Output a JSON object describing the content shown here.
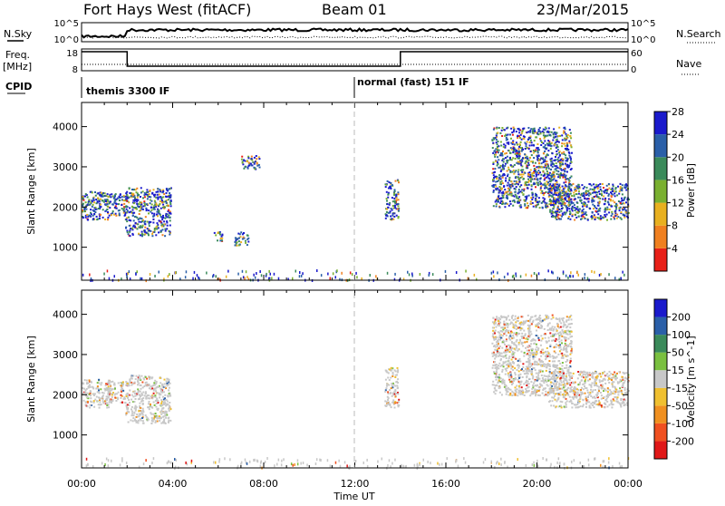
{
  "header": {
    "station": "Fort Hays West (fitACF)",
    "beam": "Beam 01",
    "date": "23/Mar/2015"
  },
  "status_panels": {
    "nsky_label": "N.Sky",
    "nsky_ticks": [
      "10^5",
      "10^0"
    ],
    "nsearch_label": "N.Search",
    "nsearch_ticks": [
      "10^5",
      "10^0"
    ],
    "freq_label_top": "Freq.",
    "freq_label_bottom": "[MHz]",
    "freq_ticks": [
      "18",
      "8"
    ],
    "nave_label": "Nave",
    "nave_ticks": [
      "60",
      "0"
    ],
    "cpid_label": "CPID",
    "cpid_segments": [
      {
        "label": "themis 3300 IF",
        "start_hour": 0,
        "end_hour": 12
      },
      {
        "label": "normal (fast) 151 IF",
        "start_hour": 12,
        "end_hour": 24
      }
    ],
    "freq_steps": [
      {
        "start_hour": 0,
        "end_hour": 2,
        "level": "high"
      },
      {
        "start_hour": 2,
        "end_hour": 14,
        "level": "low"
      },
      {
        "start_hour": 14,
        "end_hour": 24,
        "level": "high"
      }
    ]
  },
  "chart_data": [
    {
      "type": "heatmap",
      "panel": "power",
      "ylabel": "Slant Range [km]",
      "y_ticks": [
        "1000",
        "2000",
        "3000",
        "4000"
      ],
      "ylim": [
        180,
        4600
      ],
      "xlim": [
        0,
        24
      ],
      "colorbar_label": "Power [dB]",
      "colorbar_ticks": [
        "4",
        "8",
        "12",
        "16",
        "20",
        "24",
        "28"
      ],
      "colors": [
        "#1a1acc",
        "#2a5fa8",
        "#3a8a5a",
        "#7ab030",
        "#e8b020",
        "#f08020",
        "#e82018"
      ],
      "scatter_regions": [
        {
          "t0": 0.0,
          "t1": 1.2,
          "r0": 1700,
          "r1": 2400
        },
        {
          "t0": 1.0,
          "t1": 2.0,
          "r0": 1800,
          "r1": 2350
        },
        {
          "t0": 1.9,
          "t1": 3.9,
          "r0": 1300,
          "r1": 2500
        },
        {
          "t0": 5.8,
          "t1": 6.2,
          "r0": 1150,
          "r1": 1400
        },
        {
          "t0": 6.7,
          "t1": 7.3,
          "r0": 1050,
          "r1": 1400
        },
        {
          "t0": 7.0,
          "t1": 7.8,
          "r0": 2950,
          "r1": 3300
        },
        {
          "t0": 13.3,
          "t1": 13.9,
          "r0": 1700,
          "r1": 2700
        },
        {
          "t0": 18.0,
          "t1": 21.5,
          "r0": 2000,
          "r1": 4000
        },
        {
          "t0": 20.5,
          "t1": 24.0,
          "r0": 1700,
          "r1": 2600
        }
      ]
    },
    {
      "type": "heatmap",
      "panel": "velocity",
      "ylabel": "Slant Range [km]",
      "y_ticks": [
        "1000",
        "2000",
        "3000",
        "4000"
      ],
      "ylim": [
        180,
        4600
      ],
      "xlim": [
        0,
        24
      ],
      "colorbar_label": "Velocity [m s^-1]",
      "colorbar_ticks": [
        "200",
        "100",
        "50",
        "15",
        "-15",
        "-50",
        "-100",
        "-200"
      ],
      "colors": [
        "#1a1acc",
        "#2a5fa8",
        "#3a8a5a",
        "#7ac040",
        "#c8c8c8",
        "#f0c030",
        "#f09020",
        "#f05020",
        "#e01818"
      ],
      "scatter_regions": [
        {
          "t0": 0.0,
          "t1": 1.2,
          "r0": 1700,
          "r1": 2400
        },
        {
          "t0": 1.0,
          "t1": 2.0,
          "r0": 1800,
          "r1": 2350
        },
        {
          "t0": 1.9,
          "t1": 3.9,
          "r0": 1300,
          "r1": 2500
        },
        {
          "t0": 13.3,
          "t1": 13.9,
          "r0": 1700,
          "r1": 2700
        },
        {
          "t0": 18.0,
          "t1": 21.5,
          "r0": 2000,
          "r1": 4000
        },
        {
          "t0": 20.5,
          "t1": 24.0,
          "r0": 1700,
          "r1": 2600
        }
      ]
    }
  ],
  "time_axis": {
    "ticks": [
      "00:00",
      "04:00",
      "08:00",
      "12:00",
      "16:00",
      "20:00",
      "00:00"
    ],
    "label": "Time UT"
  }
}
